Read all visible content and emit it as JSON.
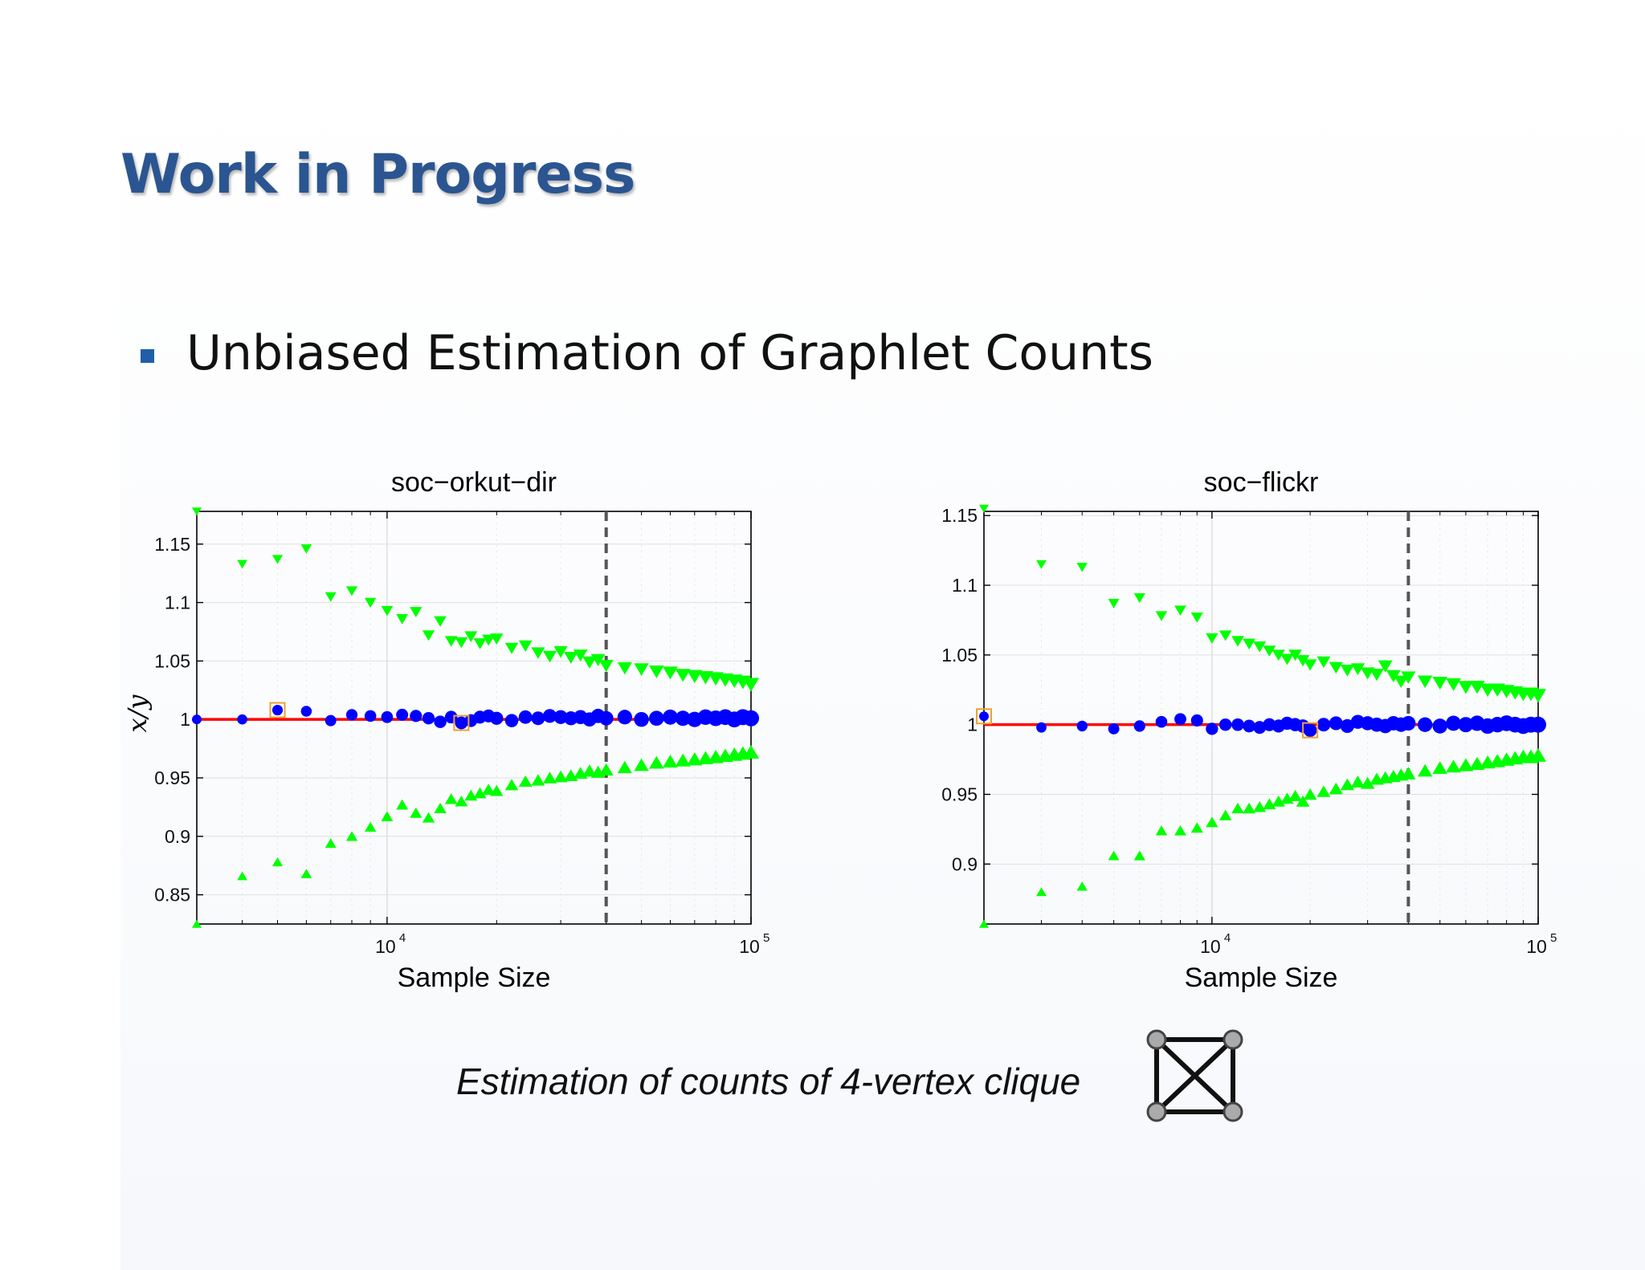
{
  "slide": {
    "title": "Work in Progress",
    "bullet": "Unbiased Estimation of Graphlet Counts",
    "caption": "Estimation of counts of 4-vertex clique",
    "clique_icon": "4-vertex-clique-icon"
  },
  "colors": {
    "title": "#2a5590",
    "bullet": "#1f5fa8",
    "estimate": "#0000ff",
    "bounds": "#00ff00",
    "reference": "#ff0000",
    "cutoff": "#555555",
    "highlight": "#f0a030"
  },
  "chart_data": [
    {
      "type": "scatter",
      "title": "soc−orkut−dir",
      "xlabel": "Sample Size",
      "ylabel": "x/y",
      "xscale": "log",
      "xlim": [
        3000,
        100000
      ],
      "ylim": [
        0.825,
        1.178
      ],
      "xticks": [
        10000,
        100000
      ],
      "xtick_labels": [
        {
          "base": "10",
          "exp": "4"
        },
        {
          "base": "10",
          "exp": "5"
        }
      ],
      "yticks": [
        0.85,
        0.9,
        0.95,
        1,
        1.05,
        1.1,
        1.15
      ],
      "ytick_labels": [
        "0.85",
        "0.9",
        "0.95",
        "1",
        "1.05",
        "1.1",
        "1.15"
      ],
      "grid": true,
      "reference_line": 1,
      "vertical_line": 40000,
      "series": [
        {
          "role": "upper",
          "marker": "triangle-down",
          "x": [
            3000,
            4000,
            5000,
            6000,
            7000,
            8000,
            9000,
            10000,
            11000,
            12000,
            13000,
            14000,
            15000,
            16000,
            17000,
            18000,
            19000,
            20000,
            22000,
            24000,
            26000,
            28000,
            30000,
            32000,
            34000,
            36000,
            38000,
            40000,
            45000,
            50000,
            55000,
            60000,
            65000,
            70000,
            75000,
            80000,
            85000,
            90000,
            95000,
            100000
          ],
          "y": [
            1.178,
            1.133,
            1.137,
            1.146,
            1.105,
            1.11,
            1.1,
            1.093,
            1.086,
            1.092,
            1.072,
            1.084,
            1.067,
            1.066,
            1.071,
            1.065,
            1.068,
            1.069,
            1.061,
            1.063,
            1.057,
            1.054,
            1.058,
            1.053,
            1.055,
            1.049,
            1.051,
            1.046,
            1.044,
            1.043,
            1.041,
            1.04,
            1.038,
            1.037,
            1.036,
            1.035,
            1.034,
            1.033,
            1.032,
            1.03
          ]
        },
        {
          "role": "lower",
          "marker": "triangle-up",
          "x": [
            3000,
            4000,
            5000,
            6000,
            7000,
            8000,
            9000,
            10000,
            11000,
            12000,
            13000,
            14000,
            15000,
            16000,
            17000,
            18000,
            19000,
            20000,
            22000,
            24000,
            26000,
            28000,
            30000,
            32000,
            34000,
            36000,
            38000,
            40000,
            45000,
            50000,
            55000,
            60000,
            65000,
            70000,
            75000,
            80000,
            85000,
            90000,
            95000,
            100000
          ],
          "y": [
            0.825,
            0.866,
            0.878,
            0.868,
            0.894,
            0.9,
            0.908,
            0.917,
            0.927,
            0.92,
            0.916,
            0.924,
            0.932,
            0.93,
            0.935,
            0.937,
            0.94,
            0.939,
            0.944,
            0.947,
            0.948,
            0.95,
            0.951,
            0.952,
            0.954,
            0.956,
            0.955,
            0.957,
            0.959,
            0.961,
            0.963,
            0.964,
            0.965,
            0.966,
            0.967,
            0.968,
            0.969,
            0.97,
            0.971,
            0.972
          ]
        },
        {
          "role": "estimate",
          "marker": "circle",
          "x": [
            3000,
            4000,
            5000,
            6000,
            7000,
            8000,
            9000,
            10000,
            11000,
            12000,
            13000,
            14000,
            15000,
            16000,
            17000,
            18000,
            19000,
            20000,
            22000,
            24000,
            26000,
            28000,
            30000,
            32000,
            34000,
            36000,
            38000,
            40000,
            45000,
            50000,
            55000,
            60000,
            65000,
            70000,
            75000,
            80000,
            85000,
            90000,
            95000,
            100000
          ],
          "y": [
            1.0,
            1.0,
            1.008,
            1.007,
            0.999,
            1.004,
            1.003,
            1.002,
            1.004,
            1.003,
            1.001,
            0.998,
            1.002,
            0.997,
            0.999,
            1.002,
            1.003,
            1.001,
            0.999,
            1.002,
            1.001,
            1.003,
            1.002,
            1.001,
            1.002,
            1.0,
            1.003,
            1.001,
            1.002,
            1.0,
            1.001,
            1.002,
            1.001,
            1.0,
            1.002,
            1.001,
            1.002,
            1.0,
            1.002,
            1.001
          ]
        }
      ],
      "highlighted": [
        {
          "x": 5000,
          "y": 1.008
        },
        {
          "x": 16000,
          "y": 0.997
        }
      ]
    },
    {
      "type": "scatter",
      "title": "soc−flickr",
      "xlabel": "Sample Size",
      "ylabel": "",
      "xscale": "log",
      "xlim": [
        2000,
        100000
      ],
      "ylim": [
        0.857,
        1.153
      ],
      "xticks": [
        10000,
        100000
      ],
      "xtick_labels": [
        {
          "base": "10",
          "exp": "4"
        },
        {
          "base": "10",
          "exp": "5"
        }
      ],
      "yticks": [
        0.9,
        0.95,
        1,
        1.05,
        1.1,
        1.15
      ],
      "ytick_labels": [
        "0.9",
        "0.95",
        "1",
        "1.05",
        "1.1",
        "1.15"
      ],
      "grid": true,
      "reference_line": 1,
      "vertical_line": 40000,
      "series": [
        {
          "role": "upper",
          "marker": "triangle-down",
          "x": [
            2000,
            3000,
            4000,
            5000,
            6000,
            7000,
            8000,
            9000,
            10000,
            11000,
            12000,
            13000,
            14000,
            15000,
            16000,
            17000,
            18000,
            19000,
            20000,
            22000,
            24000,
            26000,
            28000,
            30000,
            32000,
            34000,
            36000,
            38000,
            40000,
            45000,
            50000,
            55000,
            60000,
            65000,
            70000,
            75000,
            80000,
            85000,
            90000,
            95000,
            100000
          ],
          "y": [
            1.155,
            1.115,
            1.113,
            1.087,
            1.091,
            1.078,
            1.082,
            1.077,
            1.062,
            1.064,
            1.06,
            1.058,
            1.056,
            1.053,
            1.05,
            1.047,
            1.05,
            1.046,
            1.043,
            1.045,
            1.041,
            1.039,
            1.04,
            1.037,
            1.036,
            1.042,
            1.035,
            1.031,
            1.034,
            1.031,
            1.03,
            1.029,
            1.027,
            1.027,
            1.025,
            1.025,
            1.024,
            1.023,
            1.022,
            1.022,
            1.021
          ]
        },
        {
          "role": "lower",
          "marker": "triangle-up",
          "x": [
            2000,
            3000,
            4000,
            5000,
            6000,
            7000,
            8000,
            9000,
            10000,
            11000,
            12000,
            13000,
            14000,
            15000,
            16000,
            17000,
            18000,
            19000,
            20000,
            22000,
            24000,
            26000,
            28000,
            30000,
            32000,
            34000,
            36000,
            38000,
            40000,
            45000,
            50000,
            55000,
            60000,
            65000,
            70000,
            75000,
            80000,
            85000,
            90000,
            95000,
            100000
          ],
          "y": [
            0.857,
            0.88,
            0.884,
            0.906,
            0.906,
            0.924,
            0.924,
            0.926,
            0.93,
            0.935,
            0.94,
            0.94,
            0.941,
            0.943,
            0.945,
            0.947,
            0.949,
            0.945,
            0.95,
            0.952,
            0.954,
            0.957,
            0.959,
            0.958,
            0.961,
            0.962,
            0.963,
            0.964,
            0.965,
            0.967,
            0.969,
            0.97,
            0.971,
            0.972,
            0.973,
            0.974,
            0.975,
            0.976,
            0.977,
            0.977,
            0.978
          ]
        },
        {
          "role": "estimate",
          "marker": "circle",
          "x": [
            2000,
            3000,
            4000,
            5000,
            6000,
            7000,
            8000,
            9000,
            10000,
            11000,
            12000,
            13000,
            14000,
            15000,
            16000,
            17000,
            18000,
            19000,
            20000,
            22000,
            24000,
            26000,
            28000,
            30000,
            32000,
            34000,
            36000,
            38000,
            40000,
            45000,
            50000,
            55000,
            60000,
            65000,
            70000,
            75000,
            80000,
            85000,
            90000,
            95000,
            100000
          ],
          "y": [
            1.006,
            0.998,
            0.999,
            0.997,
            0.999,
            1.002,
            1.004,
            1.003,
            0.997,
            1.0,
            1.0,
            0.999,
            0.998,
            1.0,
            0.999,
            1.001,
            1.0,
            0.999,
            0.996,
            1.0,
            1.001,
            0.999,
            1.002,
            1.001,
            1.0,
            0.999,
            1.001,
            1.0,
            1.001,
            1.0,
            0.999,
            1.001,
            1.0,
            1.001,
            0.999,
            1.0,
            1.001,
            1.0,
            0.999,
            1.0,
            1.0
          ]
        }
      ],
      "highlighted": [
        {
          "x": 2000,
          "y": 1.006
        },
        {
          "x": 20000,
          "y": 0.996
        }
      ]
    }
  ]
}
